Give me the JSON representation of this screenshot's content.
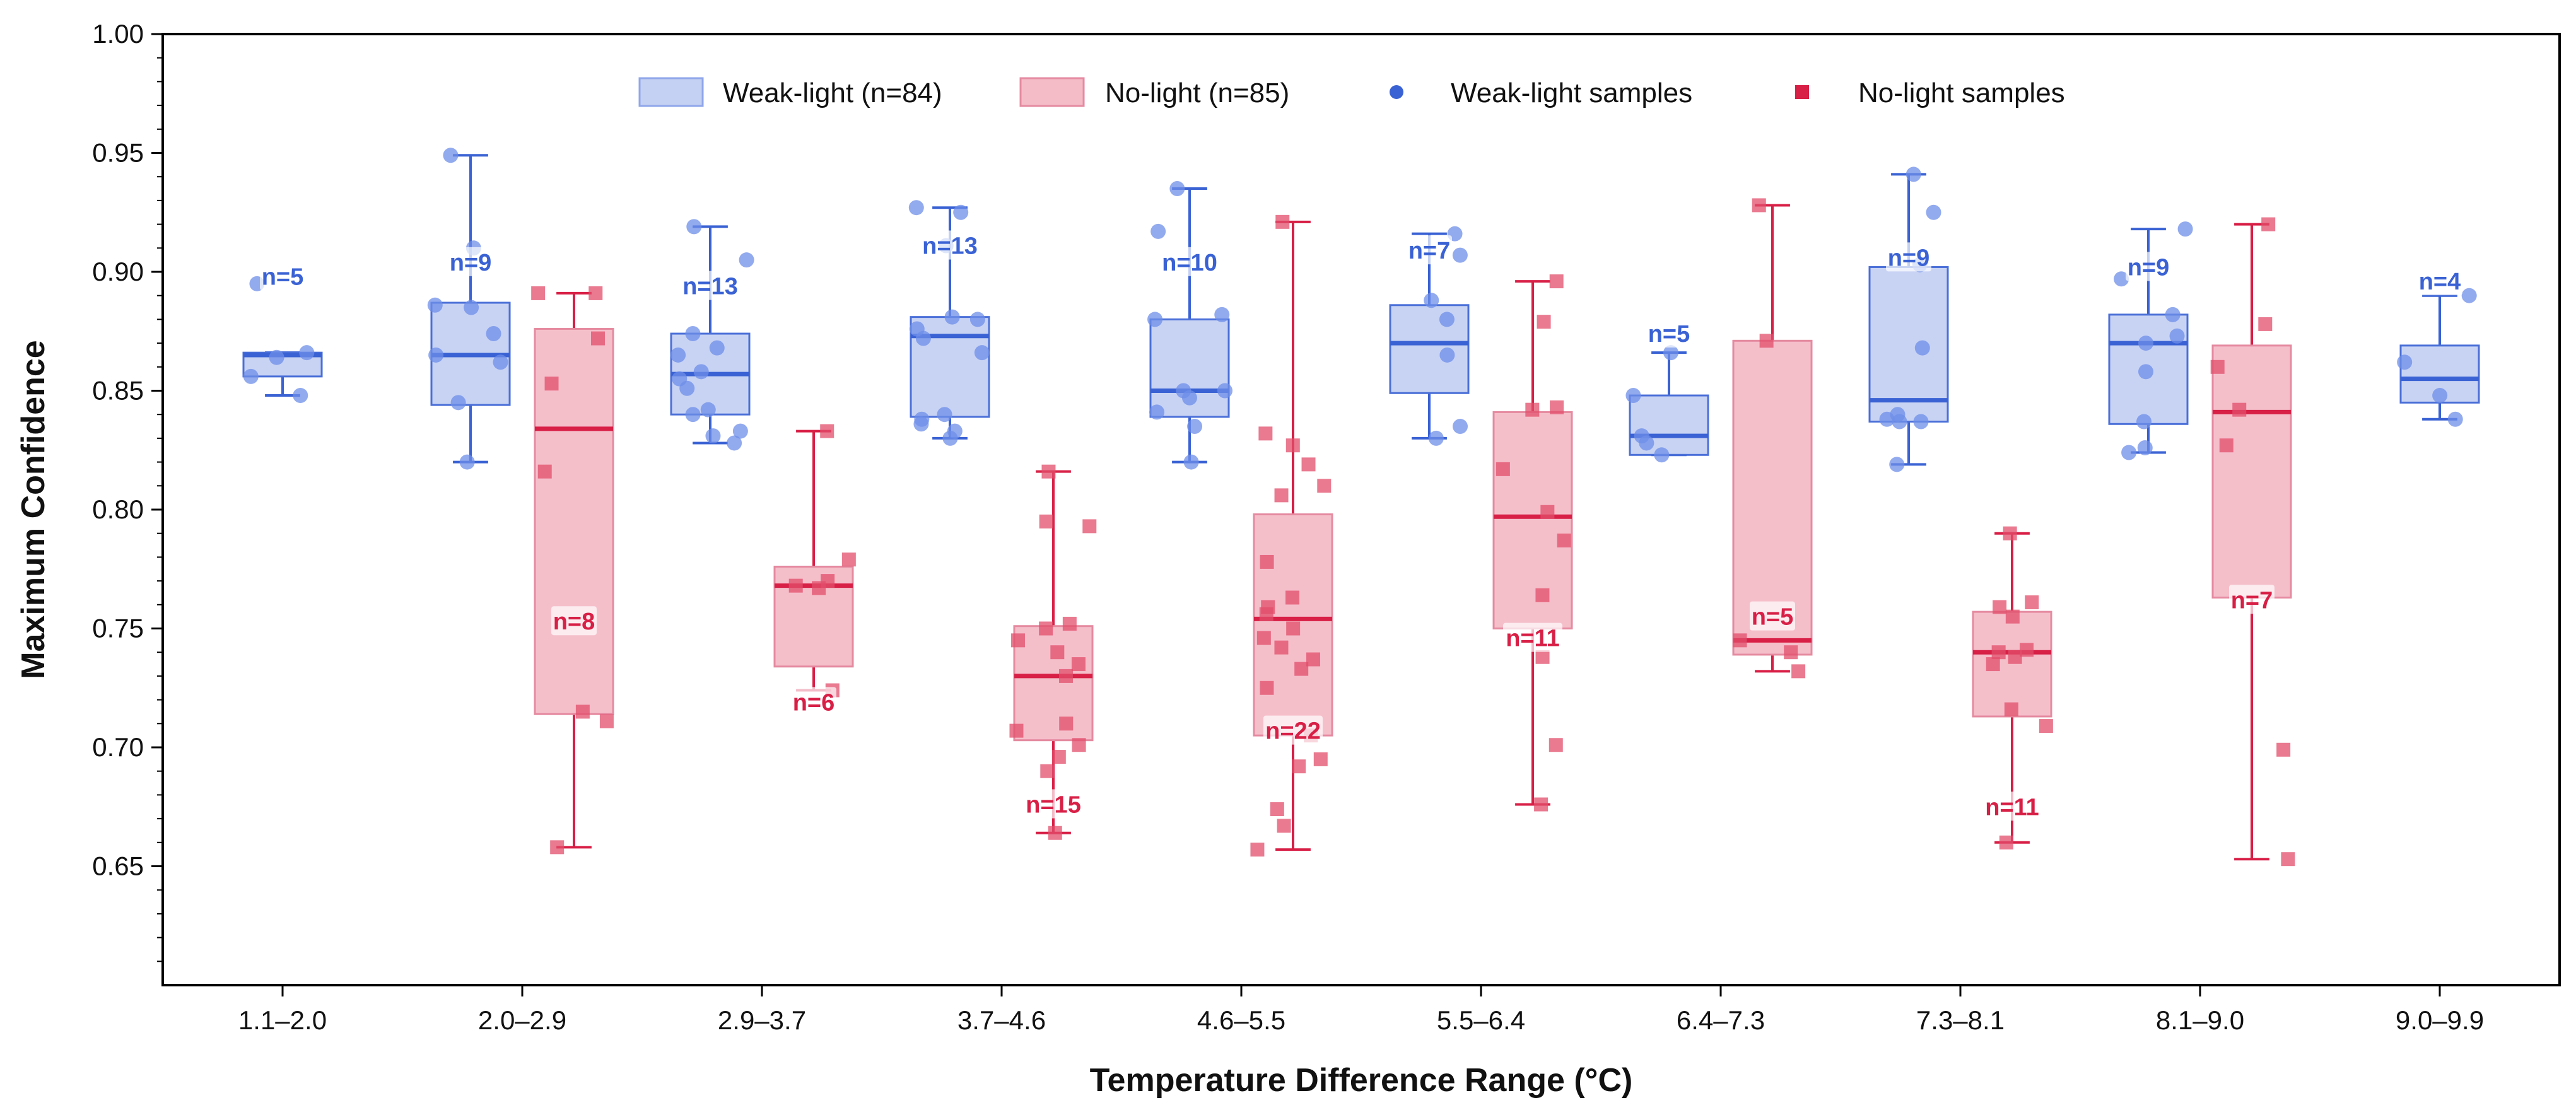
{
  "chart_data": {
    "type": "box",
    "title": "",
    "xlabel": "Temperature Difference Range (°C)",
    "ylabel": "Maximum Confidence",
    "ylim": [
      0.6,
      1.0
    ],
    "yticks": [
      "0.65",
      "0.70",
      "0.75",
      "0.80",
      "0.85",
      "0.90",
      "0.95",
      "1.00"
    ],
    "categories": [
      "1.1–2.0",
      "2.0–2.9",
      "2.9–3.7",
      "3.7–4.6",
      "4.6–5.5",
      "5.5–6.4",
      "6.4–7.3",
      "7.3–8.1",
      "8.1–9.0",
      "9.0–9.9"
    ],
    "legend": {
      "position": "top-center",
      "entries": [
        "Weak-light (n=84)",
        "No-light (n=85)",
        "Weak-light samples",
        "No-light samples"
      ]
    },
    "colors": {
      "weak_fill": "#c5d1f3",
      "weak_edge": "#4a6fd8",
      "weak_line": "#3a62d4",
      "weak_point": "#6d8ee8",
      "no_fill": "#f4bcc7",
      "no_edge": "#e58aa0",
      "no_line": "#d81f46",
      "no_point": "#e24d6b",
      "weak_text": "#3a62d4",
      "no_text": "#d81f46"
    },
    "series": [
      {
        "name": "Weak-light",
        "boxes": [
          {
            "q1": 0.856,
            "median": 0.865,
            "q3": 0.866,
            "whislo": 0.848,
            "whishi": 0.866,
            "n_label": "n=5",
            "n_pos": 0.898,
            "points": [
              0.848,
              0.856,
              0.864,
              0.866,
              0.895
            ]
          },
          {
            "q1": 0.844,
            "median": 0.865,
            "q3": 0.887,
            "whislo": 0.82,
            "whishi": 0.949,
            "n_label": "n=9",
            "n_pos": 0.904,
            "points": [
              0.82,
              0.845,
              0.862,
              0.865,
              0.874,
              0.886,
              0.91,
              0.949,
              0.885
            ]
          },
          {
            "q1": 0.84,
            "median": 0.857,
            "q3": 0.874,
            "whislo": 0.828,
            "whishi": 0.919,
            "n_label": "n=13",
            "n_pos": 0.894,
            "points": [
              0.828,
              0.831,
              0.833,
              0.84,
              0.851,
              0.855,
              0.858,
              0.865,
              0.868,
              0.874,
              0.905,
              0.919,
              0.842
            ]
          },
          {
            "q1": 0.839,
            "median": 0.873,
            "q3": 0.881,
            "whislo": 0.83,
            "whishi": 0.927,
            "n_label": "n=13",
            "n_pos": 0.911,
            "points": [
              0.83,
              0.833,
              0.838,
              0.84,
              0.866,
              0.872,
              0.876,
              0.88,
              0.881,
              0.911,
              0.925,
              0.927,
              0.836
            ]
          },
          {
            "q1": 0.839,
            "median": 0.85,
            "q3": 0.88,
            "whislo": 0.82,
            "whishi": 0.935,
            "n_label": "n=10",
            "n_pos": 0.904,
            "points": [
              0.82,
              0.835,
              0.841,
              0.847,
              0.85,
              0.85,
              0.882,
              0.917,
              0.935,
              0.88
            ]
          },
          {
            "q1": 0.849,
            "median": 0.87,
            "q3": 0.886,
            "whislo": 0.83,
            "whishi": 0.916,
            "n_label": "n=7",
            "n_pos": 0.909,
            "points": [
              0.83,
              0.835,
              0.865,
              0.88,
              0.888,
              0.916,
              0.907
            ]
          },
          {
            "q1": 0.823,
            "median": 0.831,
            "q3": 0.848,
            "whislo": 0.823,
            "whishi": 0.866,
            "n_label": "n=5",
            "n_pos": 0.874,
            "points": [
              0.823,
              0.828,
              0.831,
              0.848,
              0.866
            ]
          },
          {
            "q1": 0.837,
            "median": 0.846,
            "q3": 0.902,
            "whislo": 0.819,
            "whishi": 0.941,
            "n_label": "n=9",
            "n_pos": 0.906,
            "points": [
              0.819,
              0.837,
              0.838,
              0.84,
              0.868,
              0.925,
              0.941,
              0.903,
              0.837
            ]
          },
          {
            "q1": 0.836,
            "median": 0.87,
            "q3": 0.882,
            "whislo": 0.824,
            "whishi": 0.918,
            "n_label": "n=9",
            "n_pos": 0.902,
            "points": [
              0.824,
              0.826,
              0.837,
              0.858,
              0.87,
              0.873,
              0.882,
              0.918,
              0.897
            ]
          },
          {
            "q1": 0.845,
            "median": 0.855,
            "q3": 0.869,
            "whislo": 0.838,
            "whishi": 0.89,
            "n_label": "n=4",
            "n_pos": 0.896,
            "points": [
              0.838,
              0.848,
              0.862,
              0.89
            ]
          }
        ]
      },
      {
        "name": "No-light",
        "boxes": [
          null,
          {
            "q1": 0.714,
            "median": 0.834,
            "q3": 0.876,
            "whislo": 0.658,
            "whishi": 0.891,
            "n_label": "n=8",
            "n_pos": 0.753,
            "points": [
              0.658,
              0.711,
              0.715,
              0.816,
              0.853,
              0.872,
              0.891,
              0.891
            ]
          },
          {
            "q1": 0.734,
            "median": 0.768,
            "q3": 0.776,
            "whislo": 0.724,
            "whishi": 0.833,
            "n_label": "n=6",
            "n_pos": 0.719,
            "points": [
              0.724,
              0.767,
              0.77,
              0.779,
              0.833,
              0.768
            ]
          },
          {
            "q1": 0.703,
            "median": 0.73,
            "q3": 0.751,
            "whislo": 0.664,
            "whishi": 0.816,
            "n_label": "n=15",
            "n_pos": 0.676,
            "points": [
              0.664,
              0.696,
              0.701,
              0.707,
              0.71,
              0.73,
              0.735,
              0.74,
              0.75,
              0.752,
              0.793,
              0.795,
              0.816,
              0.69,
              0.745
            ]
          },
          {
            "q1": 0.705,
            "median": 0.754,
            "q3": 0.798,
            "whislo": 0.657,
            "whishi": 0.921,
            "n_label": "n=22",
            "n_pos": 0.707,
            "points": [
              0.657,
              0.667,
              0.674,
              0.692,
              0.695,
              0.705,
              0.725,
              0.733,
              0.737,
              0.742,
              0.75,
              0.756,
              0.759,
              0.763,
              0.778,
              0.806,
              0.81,
              0.819,
              0.827,
              0.832,
              0.921,
              0.746
            ]
          },
          {
            "q1": 0.75,
            "median": 0.797,
            "q3": 0.841,
            "whislo": 0.676,
            "whishi": 0.896,
            "n_label": "n=11",
            "n_pos": 0.746,
            "points": [
              0.676,
              0.701,
              0.738,
              0.764,
              0.787,
              0.799,
              0.817,
              0.842,
              0.843,
              0.879,
              0.896
            ]
          },
          {
            "q1": 0.739,
            "median": 0.745,
            "q3": 0.871,
            "whislo": 0.732,
            "whishi": 0.928,
            "n_label": "n=5",
            "n_pos": 0.755,
            "points": [
              0.732,
              0.74,
              0.745,
              0.871,
              0.928
            ]
          },
          {
            "q1": 0.713,
            "median": 0.74,
            "q3": 0.757,
            "whislo": 0.66,
            "whishi": 0.79,
            "n_label": "n=11",
            "n_pos": 0.675,
            "points": [
              0.66,
              0.709,
              0.716,
              0.735,
              0.738,
              0.74,
              0.741,
              0.755,
              0.759,
              0.761,
              0.79
            ]
          },
          {
            "q1": 0.763,
            "median": 0.841,
            "q3": 0.869,
            "whislo": 0.653,
            "whishi": 0.92,
            "n_label": "n=7",
            "n_pos": 0.762,
            "points": [
              0.653,
              0.699,
              0.827,
              0.842,
              0.86,
              0.878,
              0.92
            ]
          },
          null
        ]
      }
    ]
  }
}
